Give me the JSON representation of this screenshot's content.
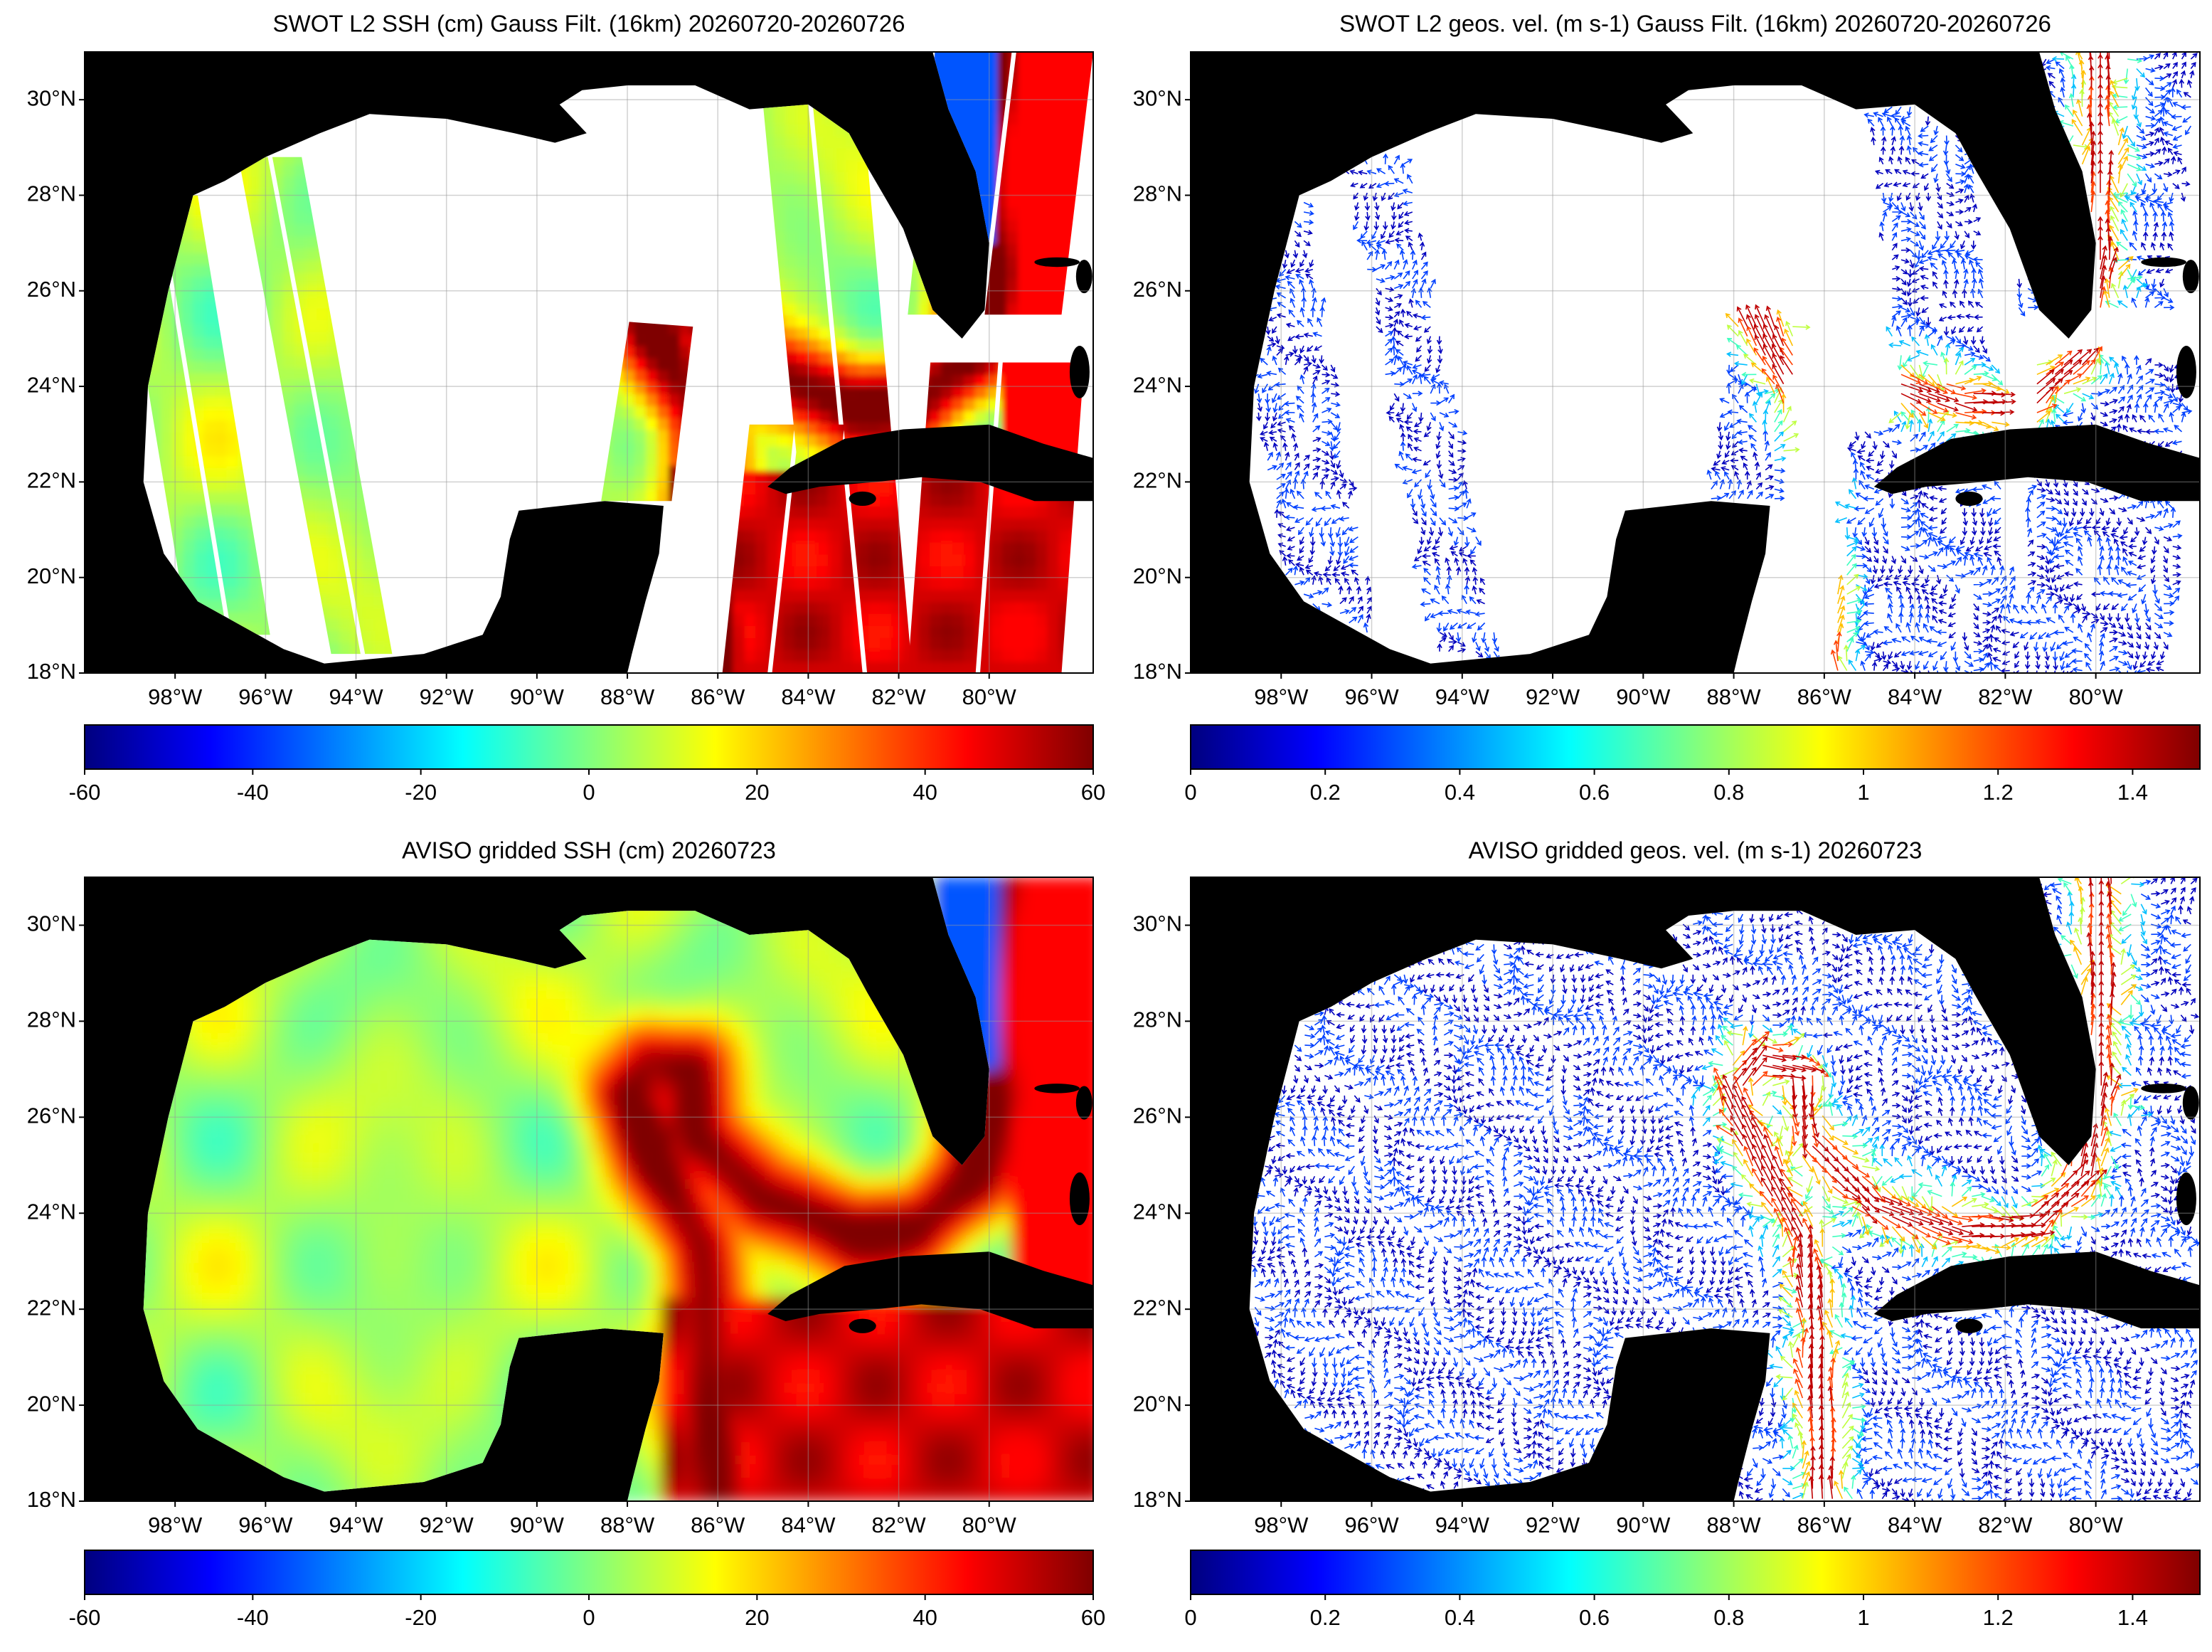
{
  "panels": [
    {
      "title": "SWOT L2 SSH (cm) Gauss Filt. (16km) 20260720-20260726",
      "xlim": [
        -100,
        -77.7
      ],
      "ylim": [
        18,
        31
      ],
      "grid": true,
      "xticks": [
        {
          "value": -98,
          "label": "98°W"
        },
        {
          "value": -96,
          "label": "96°W"
        },
        {
          "value": -94,
          "label": "94°W"
        },
        {
          "value": -92,
          "label": "92°W"
        },
        {
          "value": -90,
          "label": "90°W"
        },
        {
          "value": -88,
          "label": "88°W"
        },
        {
          "value": -86,
          "label": "86°W"
        },
        {
          "value": -84,
          "label": "84°W"
        },
        {
          "value": -82,
          "label": "82°W"
        },
        {
          "value": -80,
          "label": "80°W"
        }
      ],
      "yticks": [
        {
          "value": 18,
          "label": "18°N"
        },
        {
          "value": 20,
          "label": "20°N"
        },
        {
          "value": 22,
          "label": "22°N"
        },
        {
          "value": 24,
          "label": "24°N"
        },
        {
          "value": 26,
          "label": "26°N"
        },
        {
          "value": 28,
          "label": "28°N"
        },
        {
          "value": 30,
          "label": "30°N"
        }
      ],
      "colorbar": {
        "colormap": "jet",
        "lim": [
          -60,
          60
        ],
        "ticks": [
          -60,
          -40,
          -20,
          0,
          20,
          40,
          60
        ]
      }
    },
    {
      "title": "SWOT L2 geos. vel. (m s-1) Gauss Filt. (16km) 20260720-20260726",
      "xlim": [
        -100,
        -77.7
      ],
      "ylim": [
        18,
        31
      ],
      "grid": true,
      "xticks": [
        {
          "value": -98,
          "label": "98°W"
        },
        {
          "value": -96,
          "label": "96°W"
        },
        {
          "value": -94,
          "label": "94°W"
        },
        {
          "value": -92,
          "label": "92°W"
        },
        {
          "value": -90,
          "label": "90°W"
        },
        {
          "value": -88,
          "label": "88°W"
        },
        {
          "value": -86,
          "label": "86°W"
        },
        {
          "value": -84,
          "label": "84°W"
        },
        {
          "value": -82,
          "label": "82°W"
        },
        {
          "value": -80,
          "label": "80°W"
        }
      ],
      "yticks": [
        {
          "value": 18,
          "label": "18°N"
        },
        {
          "value": 20,
          "label": "20°N"
        },
        {
          "value": 22,
          "label": "22°N"
        },
        {
          "value": 24,
          "label": "24°N"
        },
        {
          "value": 26,
          "label": "26°N"
        },
        {
          "value": 28,
          "label": "28°N"
        },
        {
          "value": 30,
          "label": "30°N"
        }
      ],
      "colorbar": {
        "colormap": "jet",
        "lim": [
          0,
          1.5
        ],
        "ticks": [
          0,
          0.2,
          0.4,
          0.6,
          0.8,
          1,
          1.2,
          1.4
        ]
      }
    },
    {
      "title": "AVISO gridded SSH (cm) 20260723",
      "xlim": [
        -100,
        -77.7
      ],
      "ylim": [
        18,
        31
      ],
      "grid": true,
      "xticks": [
        {
          "value": -98,
          "label": "98°W"
        },
        {
          "value": -96,
          "label": "96°W"
        },
        {
          "value": -94,
          "label": "94°W"
        },
        {
          "value": -92,
          "label": "92°W"
        },
        {
          "value": -90,
          "label": "90°W"
        },
        {
          "value": -88,
          "label": "88°W"
        },
        {
          "value": -86,
          "label": "86°W"
        },
        {
          "value": -84,
          "label": "84°W"
        },
        {
          "value": -82,
          "label": "82°W"
        },
        {
          "value": -80,
          "label": "80°W"
        }
      ],
      "yticks": [
        {
          "value": 18,
          "label": "18°N"
        },
        {
          "value": 20,
          "label": "20°N"
        },
        {
          "value": 22,
          "label": "22°N"
        },
        {
          "value": 24,
          "label": "24°N"
        },
        {
          "value": 26,
          "label": "26°N"
        },
        {
          "value": 28,
          "label": "28°N"
        },
        {
          "value": 30,
          "label": "30°N"
        }
      ],
      "colorbar": {
        "colormap": "jet",
        "lim": [
          -60,
          60
        ],
        "ticks": [
          -60,
          -40,
          -20,
          0,
          20,
          40,
          60
        ]
      }
    },
    {
      "title": "AVISO gridded geos. vel. (m s-1) 20260723",
      "xlim": [
        -100,
        -77.7
      ],
      "ylim": [
        18,
        31
      ],
      "grid": true,
      "xticks": [
        {
          "value": -98,
          "label": "98°W"
        },
        {
          "value": -96,
          "label": "96°W"
        },
        {
          "value": -94,
          "label": "94°W"
        },
        {
          "value": -92,
          "label": "92°W"
        },
        {
          "value": -90,
          "label": "90°W"
        },
        {
          "value": -88,
          "label": "88°W"
        },
        {
          "value": -86,
          "label": "86°W"
        },
        {
          "value": -84,
          "label": "84°W"
        },
        {
          "value": -82,
          "label": "82°W"
        },
        {
          "value": -80,
          "label": "80°W"
        }
      ],
      "yticks": [
        {
          "value": 18,
          "label": "18°N"
        },
        {
          "value": 20,
          "label": "20°N"
        },
        {
          "value": 22,
          "label": "22°N"
        },
        {
          "value": 24,
          "label": "24°N"
        },
        {
          "value": 26,
          "label": "26°N"
        },
        {
          "value": 28,
          "label": "28°N"
        },
        {
          "value": 30,
          "label": "30°N"
        }
      ],
      "colorbar": {
        "colormap": "jet",
        "lim": [
          0,
          1.5
        ],
        "ticks": [
          0,
          0.2,
          0.4,
          0.6,
          0.8,
          1,
          1.2,
          1.4
        ]
      }
    }
  ]
}
